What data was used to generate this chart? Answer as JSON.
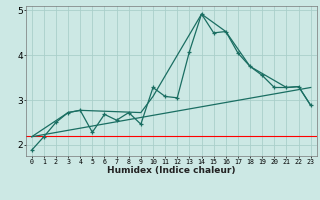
{
  "xlabel": "Humidex (Indice chaleur)",
  "xlim": [
    -0.5,
    23.5
  ],
  "ylim": [
    1.75,
    5.1
  ],
  "yticks": [
    2,
    3,
    4,
    5
  ],
  "x_values": [
    0,
    1,
    2,
    3,
    4,
    5,
    6,
    7,
    8,
    9,
    10,
    11,
    12,
    13,
    14,
    15,
    16,
    17,
    18,
    19,
    20,
    21,
    22,
    23
  ],
  "xtick_labels": [
    "0",
    "1",
    "2",
    "3",
    "4",
    "5",
    "6",
    "7",
    "8",
    "9",
    "10",
    "11",
    "12",
    "13",
    "14",
    "15",
    "16",
    "17",
    "18",
    "19",
    "20",
    "21",
    "22",
    "23"
  ],
  "background_color": "#cce8e4",
  "grid_color": "#aacfca",
  "line_color": "#1a6e62",
  "red_line_y": 2.2,
  "line1": [
    1.88,
    2.18,
    2.5,
    2.72,
    2.77,
    2.28,
    2.68,
    2.55,
    2.72,
    2.46,
    3.28,
    3.08,
    3.05,
    4.08,
    4.92,
    4.5,
    4.53,
    4.05,
    3.75,
    3.55,
    3.28,
    3.28,
    3.3,
    2.88
  ],
  "line2_x": [
    0,
    23
  ],
  "line2_y": [
    2.18,
    3.28
  ],
  "line3_x": [
    0,
    3,
    4,
    9,
    10,
    14,
    16,
    18,
    21,
    22,
    23
  ],
  "line3_y": [
    2.18,
    2.72,
    2.77,
    2.72,
    3.08,
    4.92,
    4.53,
    3.75,
    3.28,
    3.3,
    2.88
  ]
}
